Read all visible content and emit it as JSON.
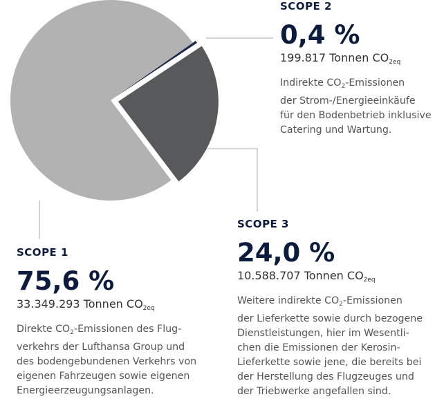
{
  "chart_data": {
    "type": "pie",
    "categories": [
      "SCOPE 2",
      "SCOPE 3",
      "SCOPE 1"
    ],
    "values": [
      0.4,
      24.0,
      75.6
    ],
    "value_labels": [
      "0,4 %",
      "24,0 %",
      "75,6 %"
    ],
    "colors": [
      "#1c2b4b",
      "#58595b",
      "#b2b2b2"
    ],
    "amounts": [
      [
        "199.817 Tonnen CO",
        "2eq"
      ],
      [
        "10.588.707 Tonnen CO",
        "2eq"
      ],
      [
        "33.349.293 Tonnen CO",
        "2eq"
      ]
    ],
    "descriptions": [
      [
        [
          "Indirekte CO",
          "2",
          "-Emissionen"
        ],
        "der Strom-/Energieeinkäufe",
        "für den Bodenbetrieb inklusive",
        "Catering und Wartung."
      ],
      [
        [
          "Weitere indirekte CO",
          "2",
          "-Emissionen"
        ],
        "der Lieferkette sowie durch bezogene",
        "Dienstleistungen, hier im Wesentli-",
        "chen die Emissionen der Kerosin-",
        "Lieferkette sowie jene, die bereits bei",
        "der Herstellung des Flugzeuges und",
        "der Triebwerke angefallen sind."
      ],
      [
        [
          "Direkte CO",
          "2",
          "-Emissionen des Flug-"
        ],
        "verkehrs der Lufthansa Group und",
        "des bodengebundenen Verkehrs von",
        "eigenen Fahrzeugen sowie eigenen",
        "Energieerzeugungsanlagen."
      ]
    ]
  }
}
